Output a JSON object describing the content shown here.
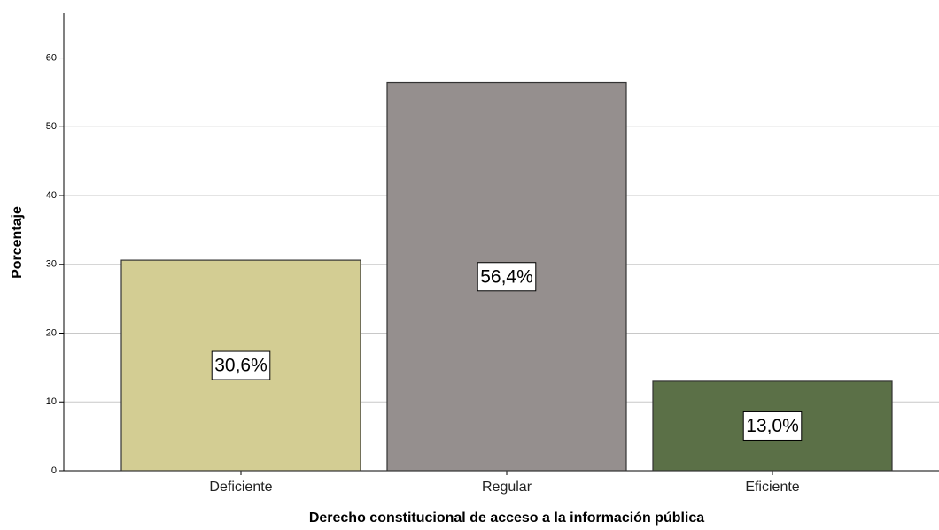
{
  "chart_data": {
    "type": "bar",
    "x_label": "Derecho constitucional de acceso a la información pública",
    "y_label": "Porcentaje",
    "categories": [
      "Deficiente",
      "Regular",
      "Eficiente"
    ],
    "values": [
      30.6,
      56.4,
      13.0
    ],
    "value_labels": [
      "30,6%",
      "56,4%",
      "13,0%"
    ],
    "colors": [
      "#d3cd93",
      "#958f8e",
      "#5b7047"
    ],
    "ylim": [
      0,
      66.5
    ],
    "yticks": [
      0,
      10,
      20,
      30,
      40,
      50,
      60
    ],
    "grid": true
  }
}
